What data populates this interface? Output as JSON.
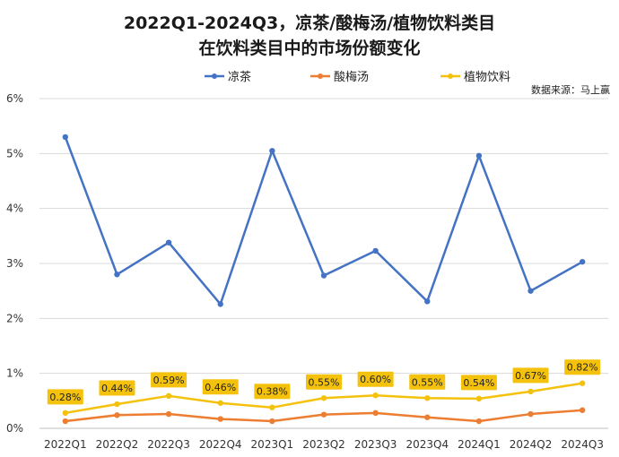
{
  "chart_data": {
    "type": "line",
    "title": [
      "2022Q1-2024Q3，凉茶/酸梅汤/植物饮料类目",
      "在饮料类目中的市场份额变化"
    ],
    "source": "数据来源：马上赢",
    "categories": [
      "2022Q1",
      "2022Q2",
      "2022Q3",
      "2022Q4",
      "2023Q1",
      "2023Q2",
      "2023Q3",
      "2023Q4",
      "2024Q1",
      "2024Q2",
      "2024Q3"
    ],
    "ylim": [
      0,
      6
    ],
    "yticks": [
      "0%",
      "1%",
      "2%",
      "3%",
      "4%",
      "5%",
      "6%"
    ],
    "ytick_values": [
      0,
      1,
      2,
      3,
      4,
      5,
      6
    ],
    "grid": true,
    "legend_position": "top-center",
    "series": [
      {
        "name": "凉茶",
        "color": "#4472c4",
        "values": [
          5.3,
          2.8,
          3.38,
          2.26,
          5.05,
          2.78,
          3.23,
          2.31,
          4.96,
          2.5,
          3.03
        ]
      },
      {
        "name": "酸梅汤",
        "color": "#ed7d31",
        "values": [
          0.13,
          0.24,
          0.26,
          0.17,
          0.13,
          0.25,
          0.28,
          0.2,
          0.13,
          0.26,
          0.33
        ]
      },
      {
        "name": "植物饮料",
        "color": "#f4c20d",
        "values": [
          0.28,
          0.44,
          0.59,
          0.46,
          0.38,
          0.55,
          0.6,
          0.55,
          0.54,
          0.67,
          0.82
        ],
        "data_labels": [
          "0.28%",
          "0.44%",
          "0.59%",
          "0.46%",
          "0.38%",
          "0.55%",
          "0.60%",
          "0.55%",
          "0.54%",
          "0.67%",
          "0.82%"
        ]
      }
    ]
  }
}
